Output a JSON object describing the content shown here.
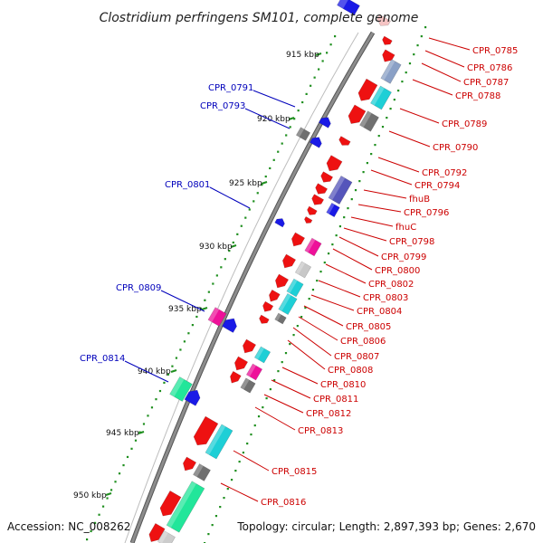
{
  "title": "Clostridium perfringens SM101, complete genome",
  "footer": {
    "accession": "Accession: NC_008262",
    "topology": "Topology: circular; Length: 2,897,393 bp; Genes: 2,670"
  },
  "colors": {
    "forward_gene": "#ee1111",
    "reverse_gene": "#1a1ae6",
    "label_forward": "#cc0000",
    "label_reverse": "#0000bb",
    "backbone": "#8c8c8c",
    "tick": "#1f8f1f",
    "feature_cyan": "#1ecfd6",
    "feature_magenta": "#ee1199",
    "feature_gray": "#707070",
    "feature_green": "#22e69a",
    "feature_slate": "#5555bb"
  },
  "ticks": [
    {
      "label": "915 kbp"
    },
    {
      "label": "920 kbp"
    },
    {
      "label": "925 kbp"
    },
    {
      "label": "930 kbp"
    },
    {
      "label": "935 kbp"
    },
    {
      "label": "940 kbp"
    },
    {
      "label": "945 kbp"
    },
    {
      "label": "950 kbp"
    }
  ],
  "labels_right": [
    "CPR_0785",
    "CPR_0786",
    "CPR_0787",
    "CPR_0788",
    "CPR_0789",
    "CPR_0790",
    "CPR_0792",
    "CPR_0794",
    "fhuB",
    "CPR_0796",
    "fhuC",
    "CPR_0798",
    "CPR_0799",
    "CPR_0800",
    "CPR_0802",
    "CPR_0803",
    "CPR_0804",
    "CPR_0805",
    "CPR_0806",
    "CPR_0807",
    "CPR_0808",
    "CPR_0810",
    "CPR_0811",
    "CPR_0812",
    "CPR_0813",
    "CPR_0815",
    "CPR_0816"
  ],
  "labels_left": [
    "CPR_0791",
    "CPR_0793",
    "CPR_0801",
    "CPR_0809",
    "CPR_0814"
  ]
}
